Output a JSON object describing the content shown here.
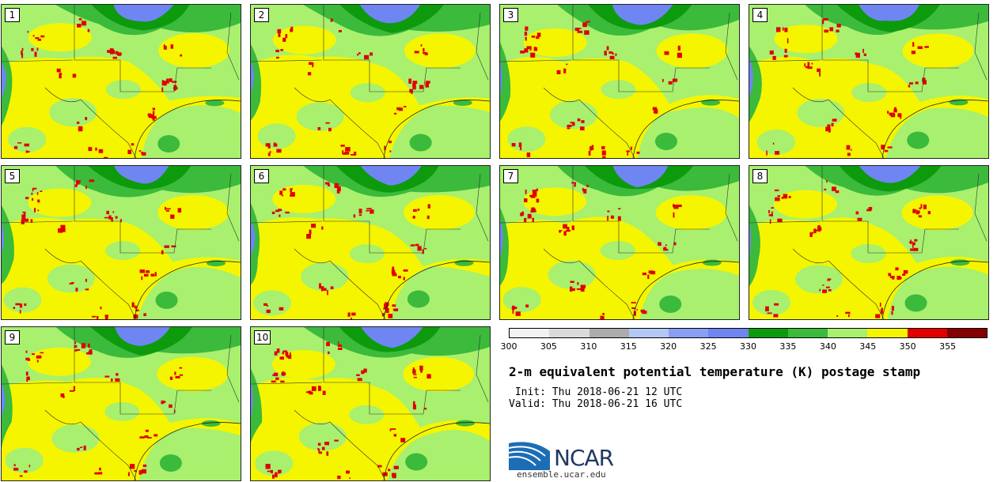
{
  "panels": [
    {
      "label": "1"
    },
    {
      "label": "2"
    },
    {
      "label": "3"
    },
    {
      "label": "4"
    },
    {
      "label": "5"
    },
    {
      "label": "6"
    },
    {
      "label": "7"
    },
    {
      "label": "8"
    },
    {
      "label": "9"
    },
    {
      "label": "10"
    }
  ],
  "colorbar": {
    "colors": [
      "#f2f2f2",
      "#dadada",
      "#acacac",
      "#b3c8f5",
      "#889ff5",
      "#6f86f2",
      "#0d9a0d",
      "#3bba3b",
      "#a8f06e",
      "#f5f500",
      "#e00000",
      "#850000"
    ],
    "ticks": [
      "300",
      "305",
      "310",
      "315",
      "320",
      "325",
      "330",
      "335",
      "340",
      "345",
      "350",
      "355"
    ]
  },
  "title": "2-m equivalent potential temperature (K) postage stamp",
  "init": " Init: Thu 2018-06-21 12 UTC",
  "valid": "Valid: Thu 2018-06-21 16 UTC",
  "logo": {
    "text": "NCAR",
    "website": "ensemble.ucar.edu"
  }
}
